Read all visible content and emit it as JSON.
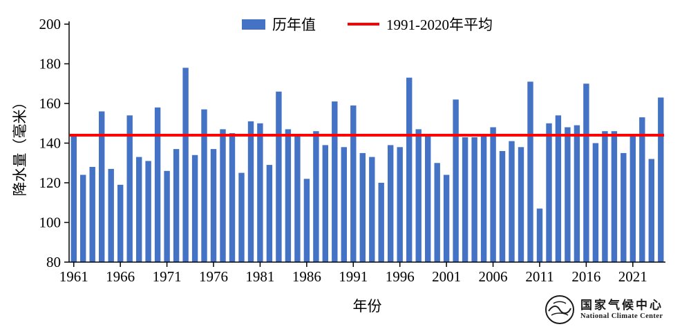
{
  "chart_data": {
    "type": "bar",
    "title": "",
    "xlabel": "年份",
    "ylabel": "降水量（毫米）",
    "series_label": "历年值",
    "ref_line": {
      "label": "1991-2020年平均",
      "value": 144,
      "color": "#FF0000"
    },
    "bar_color": "#4472C4",
    "axis_color": "#000000",
    "grid": false,
    "legend_position": "top",
    "ylim": [
      80,
      200
    ],
    "yticks": [
      80,
      100,
      120,
      140,
      160,
      180,
      200
    ],
    "xticks": [
      1961,
      1966,
      1971,
      1976,
      1981,
      1986,
      1991,
      1996,
      2001,
      2006,
      2011,
      2016,
      2021
    ],
    "x": [
      1961,
      1962,
      1963,
      1964,
      1965,
      1966,
      1967,
      1968,
      1969,
      1970,
      1971,
      1972,
      1973,
      1974,
      1975,
      1976,
      1977,
      1978,
      1979,
      1980,
      1981,
      1982,
      1983,
      1984,
      1985,
      1986,
      1987,
      1988,
      1989,
      1990,
      1991,
      1992,
      1993,
      1994,
      1995,
      1996,
      1997,
      1998,
      1999,
      2000,
      2001,
      2002,
      2003,
      2004,
      2005,
      2006,
      2007,
      2008,
      2009,
      2010,
      2011,
      2012,
      2013,
      2014,
      2015,
      2016,
      2017,
      2018,
      2019,
      2020,
      2021,
      2022,
      2023,
      2024
    ],
    "values": [
      144,
      124,
      128,
      156,
      127,
      119,
      154,
      133,
      131,
      158,
      126,
      137,
      178,
      134,
      157,
      137,
      147,
      145,
      125,
      151,
      150,
      129,
      166,
      147,
      144,
      122,
      146,
      139,
      161,
      138,
      159,
      135,
      133,
      120,
      139,
      138,
      173,
      147,
      144,
      130,
      124,
      162,
      143,
      143,
      144,
      148,
      136,
      141,
      138,
      171,
      107,
      150,
      154,
      148,
      149,
      170,
      140,
      146,
      146,
      135,
      144,
      153,
      132,
      163
    ]
  },
  "footer": {
    "logo_title": "国家气候中心",
    "logo_subtitle": "National Climate Center"
  }
}
